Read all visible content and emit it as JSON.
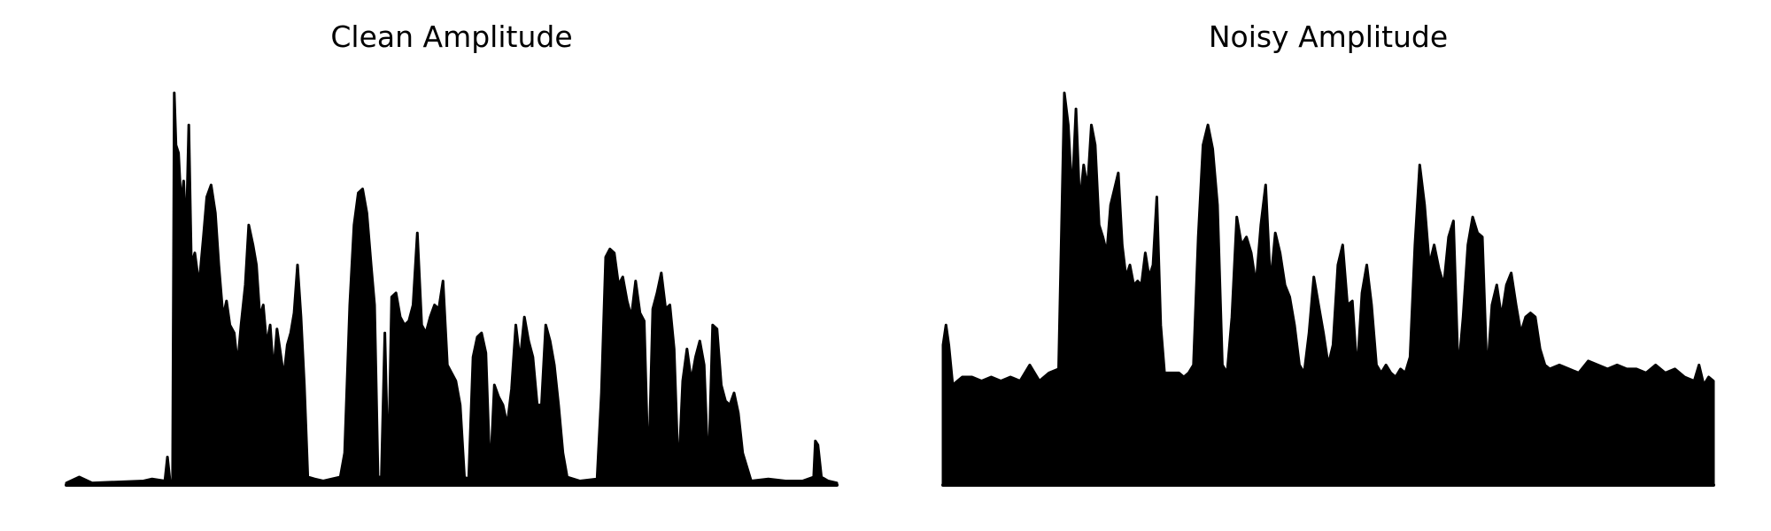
{
  "colors": {
    "background": "#ffffff",
    "waveform": "#000000"
  },
  "chart_data": [
    {
      "type": "area",
      "title": "Clean Amplitude",
      "xlabel": "",
      "ylabel": "",
      "axes_visible": false,
      "grid": false,
      "ylim": [
        0,
        1.0
      ],
      "peaks": [
        [
          0.0,
          0.005
        ],
        [
          0.015,
          0.02
        ],
        [
          0.03,
          0.005
        ],
        [
          0.09,
          0.01
        ],
        [
          0.1,
          0.015
        ],
        [
          0.115,
          0.01
        ],
        [
          0.118,
          0.07
        ],
        [
          0.121,
          0.01
        ],
        [
          0.124,
          0.01
        ],
        [
          0.126,
          0.98
        ],
        [
          0.128,
          0.85
        ],
        [
          0.131,
          0.83
        ],
        [
          0.134,
          0.7
        ],
        [
          0.137,
          0.76
        ],
        [
          0.14,
          0.62
        ],
        [
          0.143,
          0.9
        ],
        [
          0.146,
          0.55
        ],
        [
          0.15,
          0.58
        ],
        [
          0.155,
          0.5
        ],
        [
          0.16,
          0.62
        ],
        [
          0.164,
          0.72
        ],
        [
          0.169,
          0.75
        ],
        [
          0.174,
          0.68
        ],
        [
          0.178,
          0.55
        ],
        [
          0.183,
          0.42
        ],
        [
          0.187,
          0.46
        ],
        [
          0.191,
          0.4
        ],
        [
          0.196,
          0.38
        ],
        [
          0.2,
          0.3
        ],
        [
          0.204,
          0.4
        ],
        [
          0.209,
          0.5
        ],
        [
          0.213,
          0.65
        ],
        [
          0.218,
          0.6
        ],
        [
          0.222,
          0.55
        ],
        [
          0.226,
          0.42
        ],
        [
          0.23,
          0.45
        ],
        [
          0.234,
          0.35
        ],
        [
          0.238,
          0.4
        ],
        [
          0.242,
          0.28
        ],
        [
          0.246,
          0.39
        ],
        [
          0.25,
          0.33
        ],
        [
          0.254,
          0.27
        ],
        [
          0.258,
          0.35
        ],
        [
          0.262,
          0.38
        ],
        [
          0.266,
          0.43
        ],
        [
          0.27,
          0.55
        ],
        [
          0.274,
          0.42
        ],
        [
          0.278,
          0.25
        ],
        [
          0.282,
          0.02
        ],
        [
          0.29,
          0.015
        ],
        [
          0.3,
          0.01
        ],
        [
          0.31,
          0.015
        ],
        [
          0.32,
          0.02
        ],
        [
          0.325,
          0.08
        ],
        [
          0.331,
          0.45
        ],
        [
          0.336,
          0.65
        ],
        [
          0.341,
          0.73
        ],
        [
          0.346,
          0.74
        ],
        [
          0.351,
          0.68
        ],
        [
          0.356,
          0.55
        ],
        [
          0.36,
          0.45
        ],
        [
          0.364,
          0.02
        ],
        [
          0.368,
          0.02
        ],
        [
          0.372,
          0.38
        ],
        [
          0.376,
          0.02
        ],
        [
          0.38,
          0.47
        ],
        [
          0.385,
          0.48
        ],
        [
          0.39,
          0.42
        ],
        [
          0.395,
          0.4
        ],
        [
          0.4,
          0.41
        ],
        [
          0.405,
          0.45
        ],
        [
          0.41,
          0.63
        ],
        [
          0.415,
          0.4
        ],
        [
          0.42,
          0.38
        ],
        [
          0.425,
          0.42
        ],
        [
          0.43,
          0.45
        ],
        [
          0.435,
          0.44
        ],
        [
          0.44,
          0.51
        ],
        [
          0.445,
          0.3
        ],
        [
          0.45,
          0.28
        ],
        [
          0.455,
          0.26
        ],
        [
          0.46,
          0.2
        ],
        [
          0.465,
          0.02
        ],
        [
          0.47,
          0.015
        ],
        [
          0.475,
          0.32
        ],
        [
          0.48,
          0.37
        ],
        [
          0.485,
          0.38
        ],
        [
          0.49,
          0.33
        ],
        [
          0.495,
          0.02
        ],
        [
          0.5,
          0.25
        ],
        [
          0.505,
          0.22
        ],
        [
          0.51,
          0.2
        ],
        [
          0.515,
          0.15
        ],
        [
          0.52,
          0.24
        ],
        [
          0.525,
          0.4
        ],
        [
          0.53,
          0.31
        ],
        [
          0.535,
          0.42
        ],
        [
          0.54,
          0.36
        ],
        [
          0.545,
          0.32
        ],
        [
          0.55,
          0.2
        ],
        [
          0.555,
          0.2
        ],
        [
          0.56,
          0.4
        ],
        [
          0.565,
          0.36
        ],
        [
          0.57,
          0.3
        ],
        [
          0.575,
          0.2
        ],
        [
          0.58,
          0.08
        ],
        [
          0.585,
          0.02
        ],
        [
          0.6,
          0.01
        ],
        [
          0.62,
          0.015
        ],
        [
          0.625,
          0.23
        ],
        [
          0.63,
          0.57
        ],
        [
          0.635,
          0.59
        ],
        [
          0.64,
          0.58
        ],
        [
          0.645,
          0.5
        ],
        [
          0.65,
          0.52
        ],
        [
          0.655,
          0.46
        ],
        [
          0.66,
          0.42
        ],
        [
          0.665,
          0.51
        ],
        [
          0.67,
          0.43
        ],
        [
          0.675,
          0.41
        ],
        [
          0.68,
          0.02
        ],
        [
          0.685,
          0.44
        ],
        [
          0.69,
          0.48
        ],
        [
          0.695,
          0.53
        ],
        [
          0.7,
          0.44
        ],
        [
          0.705,
          0.45
        ],
        [
          0.71,
          0.34
        ],
        [
          0.715,
          0.02
        ],
        [
          0.72,
          0.26
        ],
        [
          0.725,
          0.34
        ],
        [
          0.73,
          0.26
        ],
        [
          0.735,
          0.32
        ],
        [
          0.74,
          0.36
        ],
        [
          0.745,
          0.3
        ],
        [
          0.75,
          0.02
        ],
        [
          0.755,
          0.4
        ],
        [
          0.76,
          0.39
        ],
        [
          0.765,
          0.25
        ],
        [
          0.77,
          0.21
        ],
        [
          0.775,
          0.2
        ],
        [
          0.78,
          0.23
        ],
        [
          0.785,
          0.18
        ],
        [
          0.79,
          0.08
        ],
        [
          0.8,
          0.01
        ],
        [
          0.82,
          0.015
        ],
        [
          0.84,
          0.01
        ],
        [
          0.86,
          0.01
        ],
        [
          0.873,
          0.02
        ],
        [
          0.875,
          0.11
        ],
        [
          0.878,
          0.1
        ],
        [
          0.882,
          0.02
        ],
        [
          0.89,
          0.01
        ],
        [
          0.9,
          0.005
        ]
      ]
    },
    {
      "type": "area",
      "title": "Noisy Amplitude",
      "xlabel": "",
      "ylabel": "",
      "axes_visible": false,
      "grid": false,
      "ylim": [
        0,
        1.0
      ],
      "peaks": [
        [
          0.0,
          0.35
        ],
        [
          0.003,
          0.4
        ],
        [
          0.006,
          0.35
        ],
        [
          0.01,
          0.25
        ],
        [
          0.02,
          0.27
        ],
        [
          0.03,
          0.27
        ],
        [
          0.04,
          0.26
        ],
        [
          0.05,
          0.27
        ],
        [
          0.06,
          0.26
        ],
        [
          0.07,
          0.27
        ],
        [
          0.08,
          0.26
        ],
        [
          0.09,
          0.3
        ],
        [
          0.1,
          0.26
        ],
        [
          0.11,
          0.28
        ],
        [
          0.12,
          0.29
        ],
        [
          0.126,
          0.98
        ],
        [
          0.13,
          0.9
        ],
        [
          0.134,
          0.72
        ],
        [
          0.138,
          0.94
        ],
        [
          0.142,
          0.7
        ],
        [
          0.146,
          0.8
        ],
        [
          0.15,
          0.74
        ],
        [
          0.154,
          0.9
        ],
        [
          0.158,
          0.85
        ],
        [
          0.162,
          0.65
        ],
        [
          0.166,
          0.62
        ],
        [
          0.17,
          0.58
        ],
        [
          0.174,
          0.7
        ],
        [
          0.178,
          0.74
        ],
        [
          0.182,
          0.78
        ],
        [
          0.186,
          0.6
        ],
        [
          0.19,
          0.52
        ],
        [
          0.194,
          0.55
        ],
        [
          0.198,
          0.5
        ],
        [
          0.202,
          0.51
        ],
        [
          0.206,
          0.5
        ],
        [
          0.21,
          0.58
        ],
        [
          0.214,
          0.52
        ],
        [
          0.218,
          0.55
        ],
        [
          0.222,
          0.72
        ],
        [
          0.226,
          0.4
        ],
        [
          0.23,
          0.28
        ],
        [
          0.235,
          0.28
        ],
        [
          0.24,
          0.28
        ],
        [
          0.245,
          0.28
        ],
        [
          0.25,
          0.27
        ],
        [
          0.255,
          0.28
        ],
        [
          0.26,
          0.3
        ],
        [
          0.265,
          0.62
        ],
        [
          0.27,
          0.85
        ],
        [
          0.275,
          0.9
        ],
        [
          0.28,
          0.84
        ],
        [
          0.285,
          0.7
        ],
        [
          0.29,
          0.3
        ],
        [
          0.295,
          0.28
        ],
        [
          0.3,
          0.42
        ],
        [
          0.305,
          0.67
        ],
        [
          0.31,
          0.6
        ],
        [
          0.315,
          0.62
        ],
        [
          0.32,
          0.58
        ],
        [
          0.325,
          0.5
        ],
        [
          0.33,
          0.65
        ],
        [
          0.335,
          0.75
        ],
        [
          0.34,
          0.5
        ],
        [
          0.345,
          0.63
        ],
        [
          0.35,
          0.58
        ],
        [
          0.355,
          0.5
        ],
        [
          0.36,
          0.47
        ],
        [
          0.365,
          0.4
        ],
        [
          0.37,
          0.3
        ],
        [
          0.375,
          0.28
        ],
        [
          0.38,
          0.38
        ],
        [
          0.385,
          0.52
        ],
        [
          0.39,
          0.45
        ],
        [
          0.395,
          0.38
        ],
        [
          0.4,
          0.3
        ],
        [
          0.405,
          0.35
        ],
        [
          0.41,
          0.55
        ],
        [
          0.415,
          0.6
        ],
        [
          0.42,
          0.45
        ],
        [
          0.425,
          0.46
        ],
        [
          0.43,
          0.28
        ],
        [
          0.435,
          0.48
        ],
        [
          0.44,
          0.55
        ],
        [
          0.445,
          0.45
        ],
        [
          0.45,
          0.3
        ],
        [
          0.455,
          0.28
        ],
        [
          0.46,
          0.3
        ],
        [
          0.465,
          0.28
        ],
        [
          0.47,
          0.27
        ],
        [
          0.475,
          0.29
        ],
        [
          0.48,
          0.28
        ],
        [
          0.485,
          0.32
        ],
        [
          0.49,
          0.6
        ],
        [
          0.495,
          0.8
        ],
        [
          0.5,
          0.7
        ],
        [
          0.505,
          0.55
        ],
        [
          0.51,
          0.6
        ],
        [
          0.515,
          0.54
        ],
        [
          0.52,
          0.5
        ],
        [
          0.525,
          0.62
        ],
        [
          0.53,
          0.66
        ],
        [
          0.535,
          0.28
        ],
        [
          0.54,
          0.42
        ],
        [
          0.545,
          0.6
        ],
        [
          0.55,
          0.67
        ],
        [
          0.555,
          0.63
        ],
        [
          0.56,
          0.62
        ],
        [
          0.565,
          0.27
        ],
        [
          0.57,
          0.45
        ],
        [
          0.575,
          0.5
        ],
        [
          0.58,
          0.42
        ],
        [
          0.585,
          0.5
        ],
        [
          0.59,
          0.53
        ],
        [
          0.595,
          0.45
        ],
        [
          0.6,
          0.38
        ],
        [
          0.605,
          0.42
        ],
        [
          0.61,
          0.43
        ],
        [
          0.615,
          0.42
        ],
        [
          0.62,
          0.34
        ],
        [
          0.625,
          0.3
        ],
        [
          0.63,
          0.29
        ],
        [
          0.64,
          0.3
        ],
        [
          0.65,
          0.29
        ],
        [
          0.66,
          0.28
        ],
        [
          0.67,
          0.31
        ],
        [
          0.68,
          0.3
        ],
        [
          0.69,
          0.29
        ],
        [
          0.7,
          0.3
        ],
        [
          0.71,
          0.29
        ],
        [
          0.72,
          0.29
        ],
        [
          0.73,
          0.28
        ],
        [
          0.74,
          0.3
        ],
        [
          0.75,
          0.28
        ],
        [
          0.76,
          0.29
        ],
        [
          0.77,
          0.27
        ],
        [
          0.78,
          0.26
        ],
        [
          0.785,
          0.3
        ],
        [
          0.79,
          0.25
        ],
        [
          0.795,
          0.27
        ],
        [
          0.8,
          0.26
        ]
      ]
    }
  ]
}
